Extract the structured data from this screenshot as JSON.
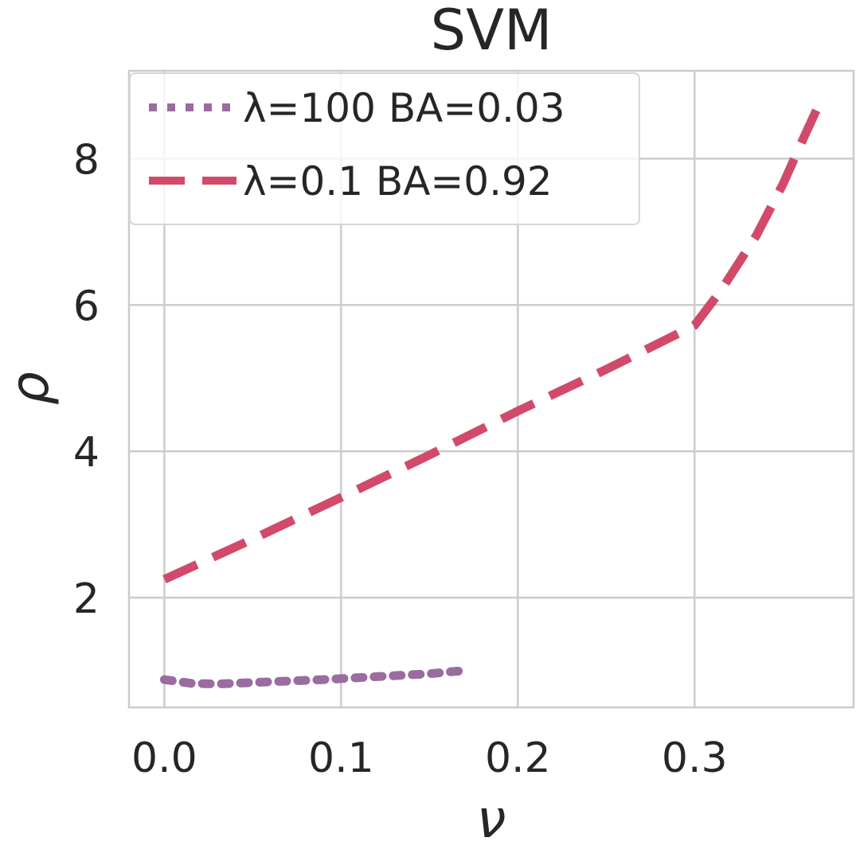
{
  "chart_data": {
    "type": "line",
    "title": "SVM",
    "xlabel": "ν",
    "ylabel": "ρ",
    "xlim": [
      -0.02,
      0.39
    ],
    "ylim": [
      0.5,
      9.2
    ],
    "xticks": [
      0.0,
      0.1,
      0.2,
      0.3
    ],
    "xtick_labels": [
      "0.0",
      "0.1",
      "0.2",
      "0.3"
    ],
    "yticks": [
      2,
      4,
      6,
      8
    ],
    "ytick_labels": [
      "2",
      "4",
      "6",
      "8"
    ],
    "grid": true,
    "legend_position": "top-left",
    "series": [
      {
        "name": "λ=100 BA=0.03",
        "color": "#9a6c9f",
        "line_style": "dotted",
        "x": [
          0.0,
          0.015,
          0.03,
          0.06,
          0.09,
          0.12,
          0.15,
          0.168
        ],
        "y": [
          0.88,
          0.83,
          0.82,
          0.85,
          0.88,
          0.92,
          0.96,
          1.0
        ]
      },
      {
        "name": "λ=0.1 BA=0.92",
        "color": "#d24a6a",
        "line_style": "dashed",
        "x": [
          0.0,
          0.05,
          0.1,
          0.15,
          0.2,
          0.25,
          0.3,
          0.315,
          0.335,
          0.35,
          0.362,
          0.372
        ],
        "y": [
          2.25,
          2.8,
          3.37,
          3.95,
          4.55,
          5.12,
          5.72,
          6.2,
          6.95,
          7.65,
          8.3,
          8.82
        ]
      }
    ]
  }
}
